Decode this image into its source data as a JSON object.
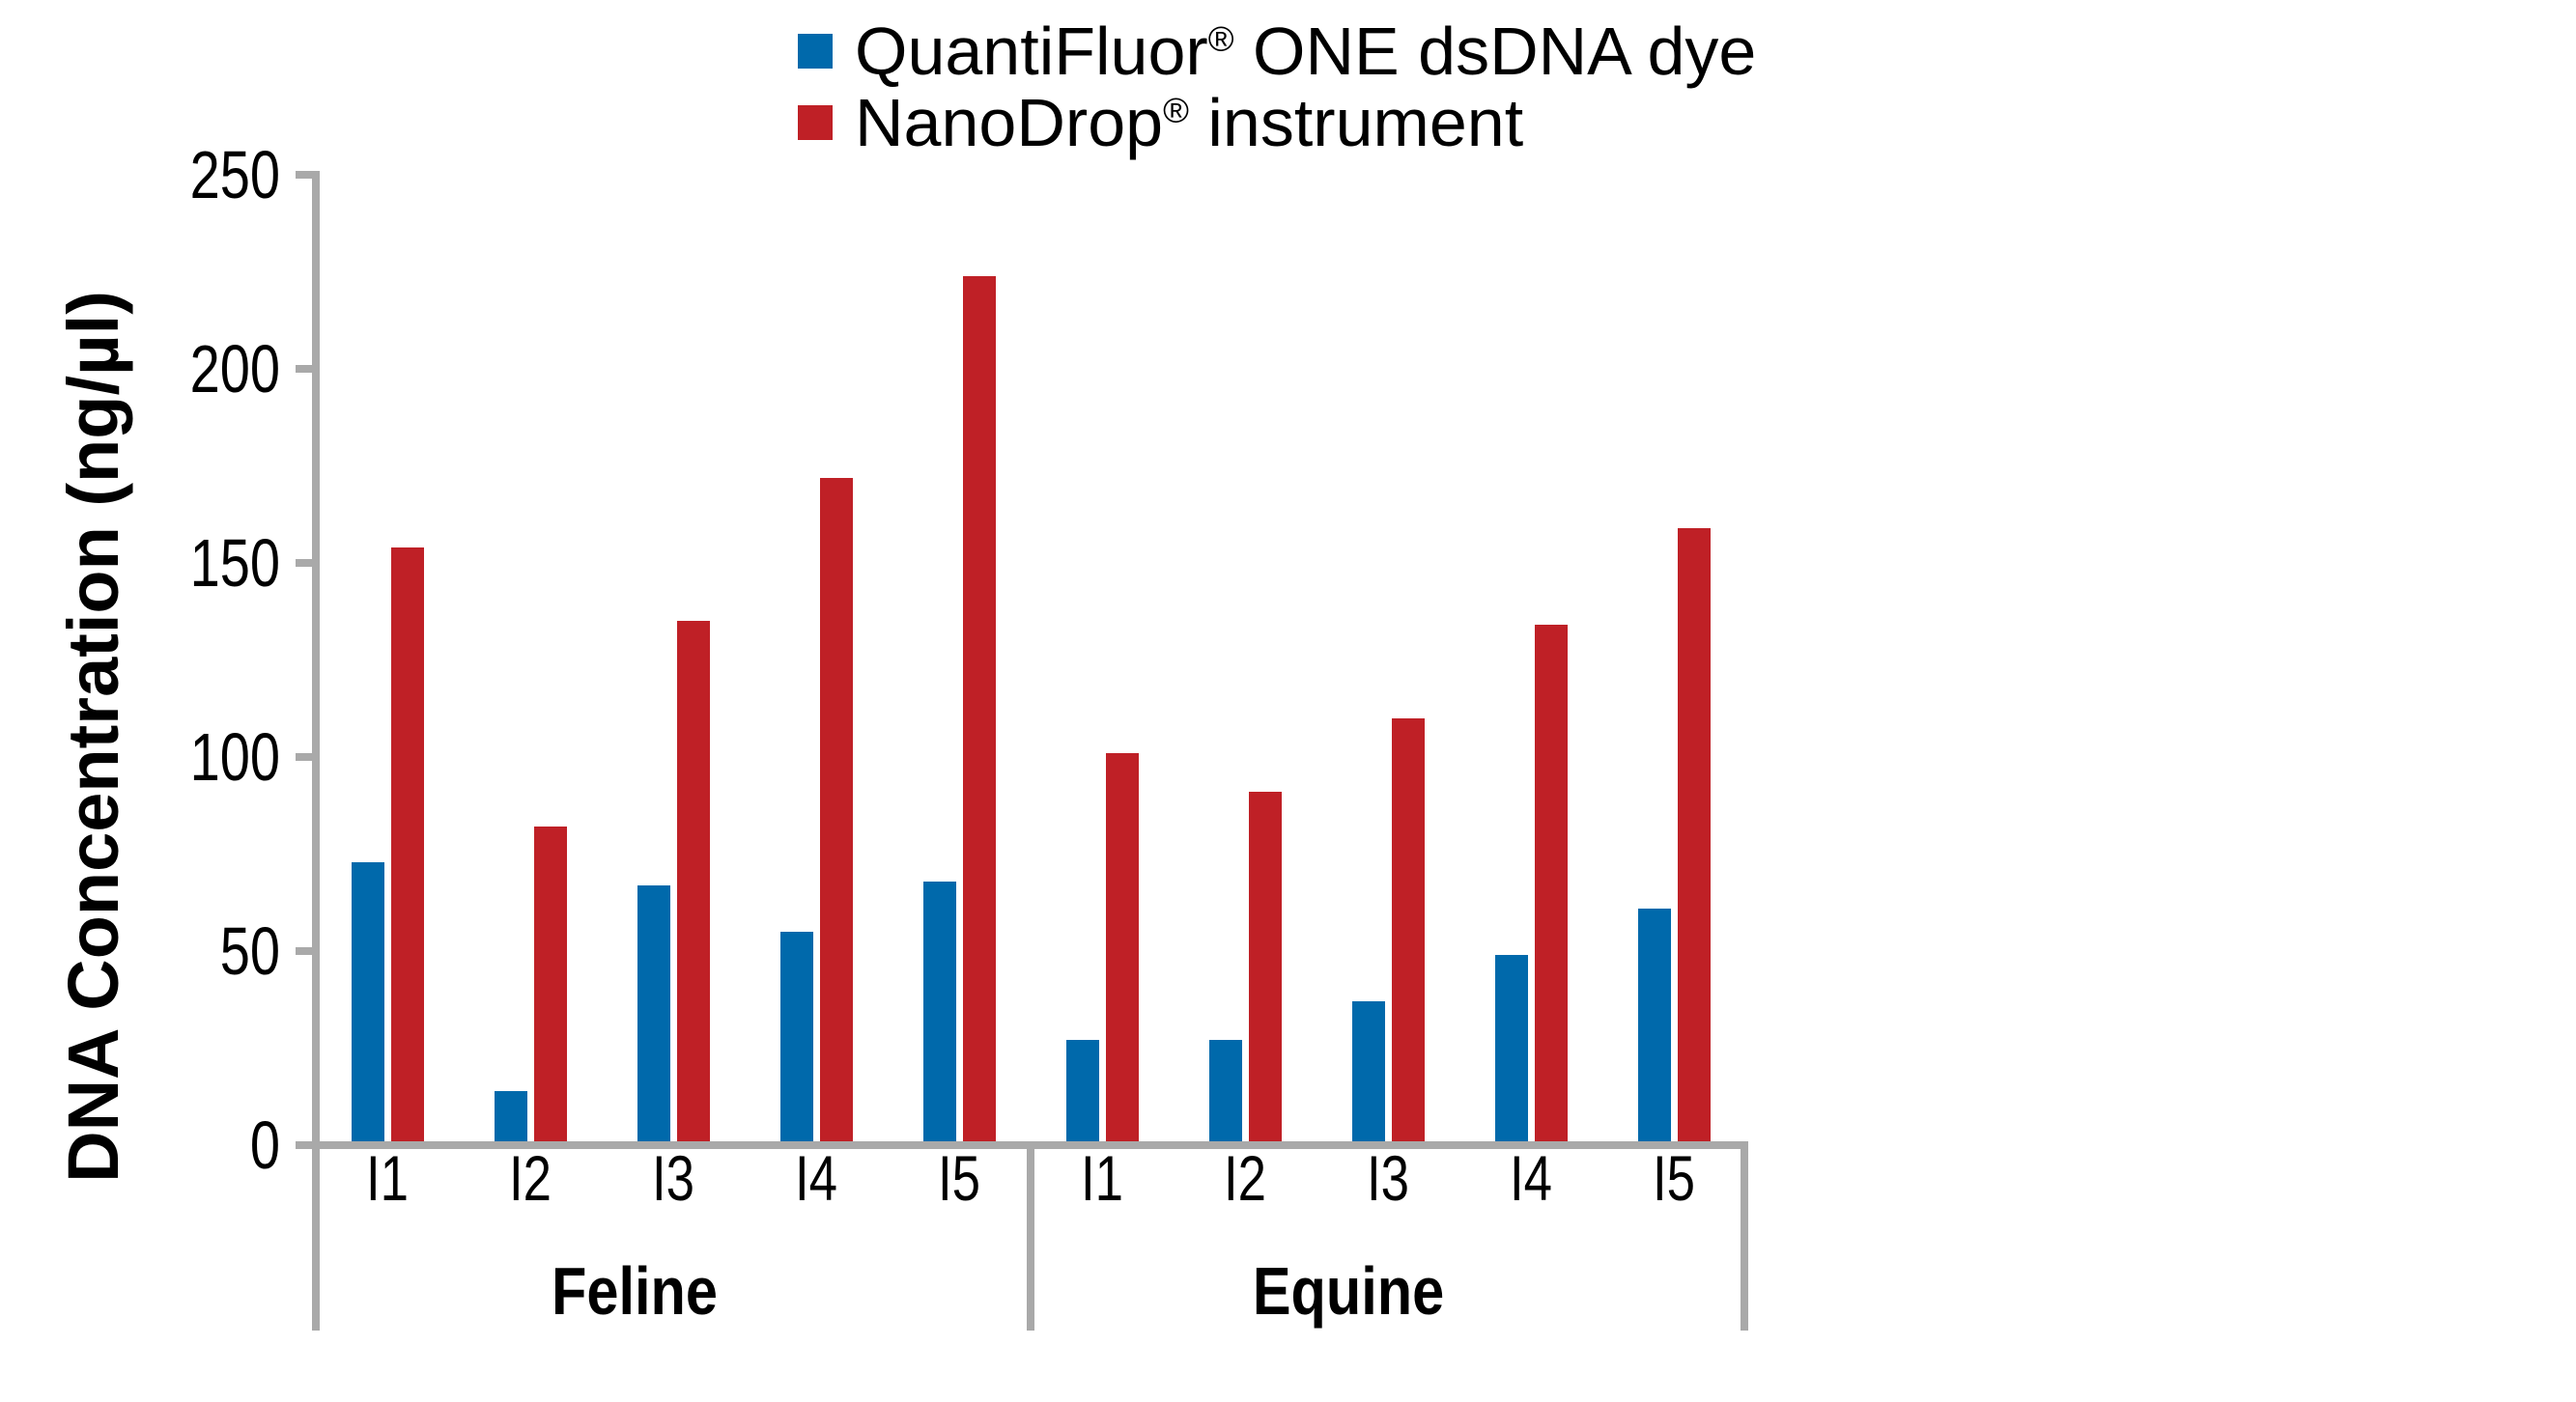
{
  "figure": {
    "background": "#ffffff",
    "text_color": "#000000"
  },
  "chart_data": {
    "type": "bar",
    "title": "",
    "ylabel": "DNA Concentration (ng/µl)",
    "xlabel": "",
    "ylim": [
      0,
      250
    ],
    "y_ticks": [
      0,
      50,
      100,
      150,
      200,
      250
    ],
    "grid": false,
    "legend_position": "top",
    "axis_color": "#a9a9a9",
    "groups": [
      "Feline",
      "Equine"
    ],
    "categories": [
      [
        "I1",
        "I2",
        "I3",
        "I4",
        "I5"
      ],
      [
        "I1",
        "I2",
        "I3",
        "I4",
        "I5"
      ]
    ],
    "series": [
      {
        "name": "QuantiFluor® ONE dsDNA dye",
        "color": "#0069ab",
        "values": [
          [
            72,
            13,
            66,
            54,
            67
          ],
          [
            26,
            26,
            36,
            48,
            60
          ]
        ]
      },
      {
        "name": "NanoDrop® instrument",
        "color": "#bf2026",
        "values": [
          [
            153,
            81,
            134,
            171,
            223
          ],
          [
            100,
            90,
            109,
            133,
            158
          ]
        ]
      }
    ]
  }
}
